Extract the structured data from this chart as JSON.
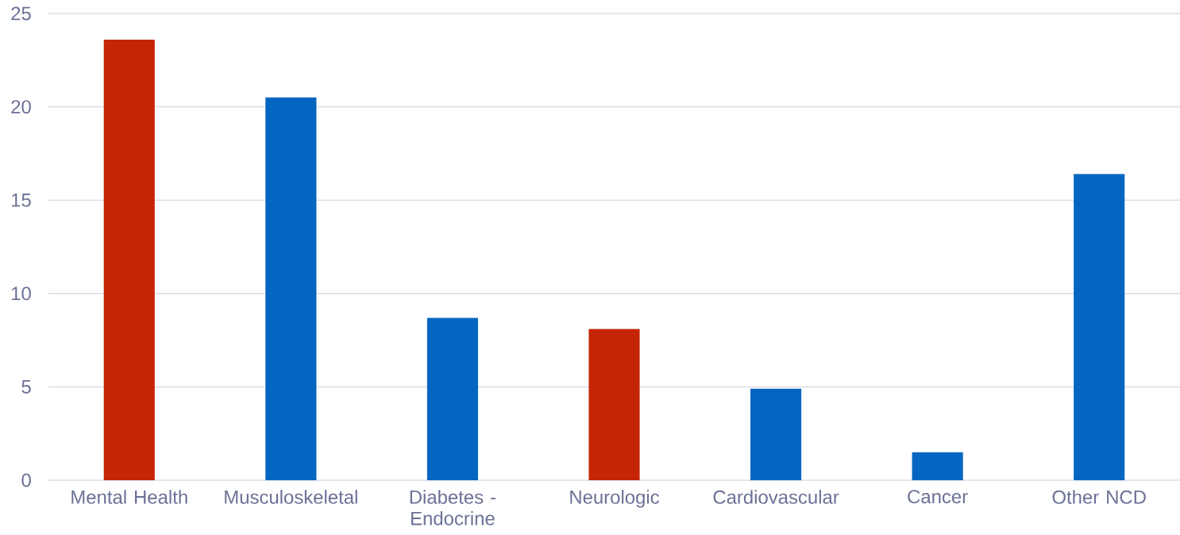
{
  "chart_data": {
    "type": "bar",
    "categories": [
      "Mental Health",
      "Musculoskeletal",
      "Diabetes - Endocrine",
      "Neurologic",
      "Cardiovascular",
      "Cancer",
      "Other NCD"
    ],
    "values": [
      23.6,
      20.5,
      8.7,
      8.1,
      4.9,
      1.5,
      16.4
    ],
    "colors": [
      "#c62406",
      "#0466c1",
      "#0466c1",
      "#c62406",
      "#0466c1",
      "#0466c1",
      "#0466c1"
    ],
    "ylim": [
      0,
      25
    ],
    "yticks": [
      0,
      5,
      10,
      15,
      20,
      25
    ],
    "grid": "y"
  }
}
